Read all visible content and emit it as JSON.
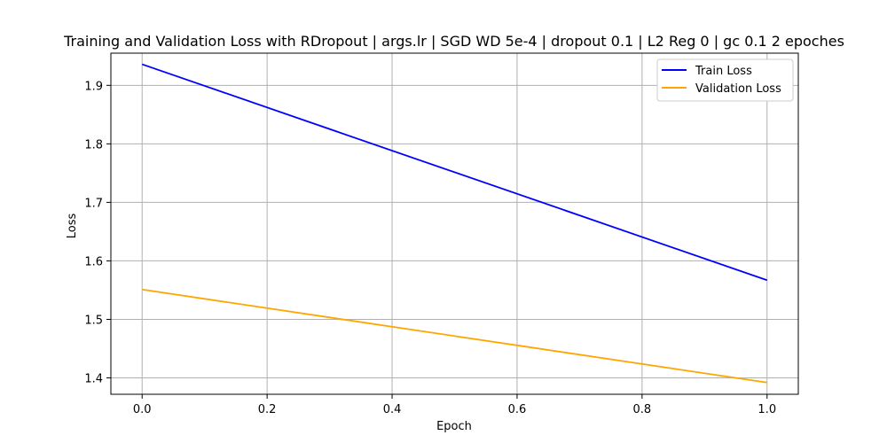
{
  "chart_data": {
    "type": "line",
    "title": "Training and Validation Loss with RDropout | args.lr | SGD WD 5e-4 | dropout 0.1 | L2 Reg 0 | gc 0.1 2 epoches",
    "xlabel": "Epoch",
    "ylabel": "Loss",
    "xlim": [
      -0.05,
      1.05
    ],
    "ylim": [
      1.372,
      1.955
    ],
    "x_ticks": [
      "0.0",
      "0.2",
      "0.4",
      "0.6",
      "0.8",
      "1.0"
    ],
    "y_ticks": [
      "1.4",
      "1.5",
      "1.6",
      "1.7",
      "1.8",
      "1.9"
    ],
    "grid": true,
    "legend": "top-right",
    "series": [
      {
        "name": "Train Loss",
        "color": "#0000ff",
        "x": [
          0.0,
          1.0
        ],
        "y": [
          1.936,
          1.567
        ]
      },
      {
        "name": "Validation Loss",
        "color": "#ffa500",
        "x": [
          0.0,
          1.0
        ],
        "y": [
          1.551,
          1.392
        ]
      }
    ]
  }
}
